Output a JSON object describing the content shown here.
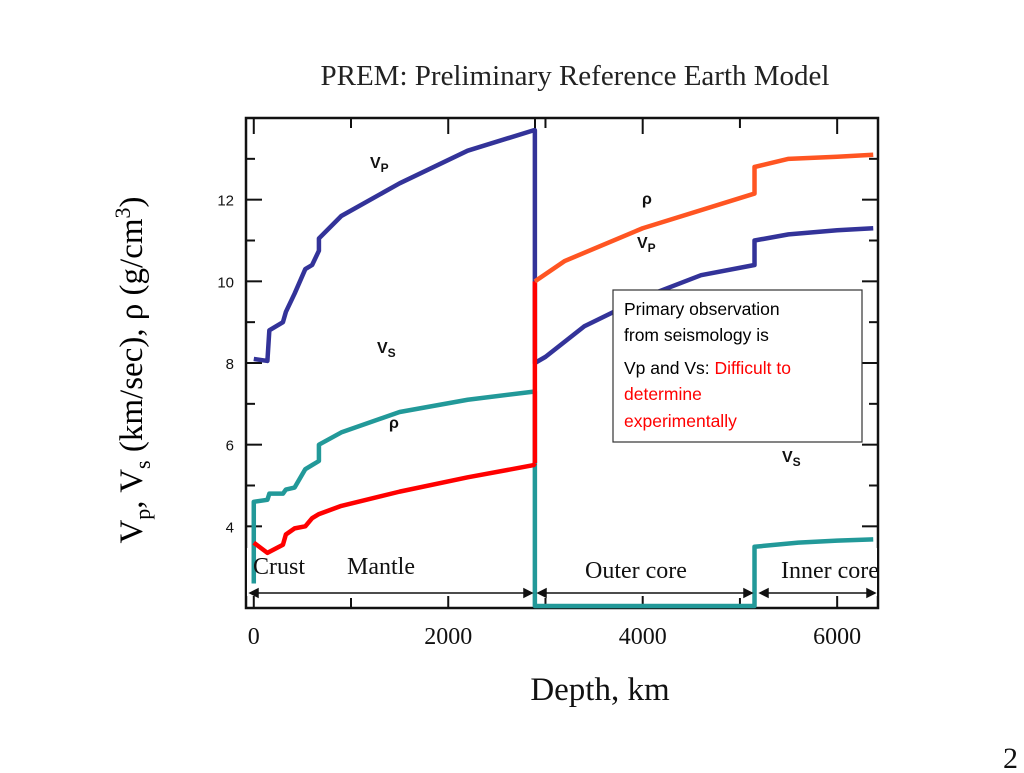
{
  "slide": {
    "title": "PREM: Preliminary Reference Earth Model",
    "ylabel": {
      "vp": "V",
      "vp_sub": "p",
      "sep": ", ",
      "vs": "V",
      "vs_sub": "s",
      "units": " (km/sec), ρ (g/cm",
      "units_sup": "3",
      "close": ")"
    },
    "xlabel": "Depth, km",
    "page_number": "2"
  },
  "annotation": {
    "line1": "Primary observation",
    "line2": "from seismology is",
    "line3a": "Vp and Vs: ",
    "line3b": "Difficult to",
    "line4": "determine",
    "line5": "experimentally",
    "highlight_color": "#ff0000"
  },
  "regions": {
    "crust": "Crust",
    "mantle": "Mantle",
    "outer_core": "Outer core",
    "inner_core": "Inner core"
  },
  "curve_labels": {
    "vp_mantle": {
      "main": "V",
      "sub": "P"
    },
    "vs_mantle": {
      "main": "V",
      "sub": "S"
    },
    "rho_mantle": "ρ",
    "rho_core": "ρ",
    "vp_core": {
      "main": "V",
      "sub": "P"
    },
    "vs_core": {
      "main": "V",
      "sub": "S"
    }
  },
  "chart_data": {
    "type": "line",
    "title": "PREM: Preliminary Reference Earth Model",
    "xlabel": "Depth, km",
    "ylabel": "Vp, Vs (km/sec), ρ (g/cm3)",
    "xlim": [
      -80,
      6420
    ],
    "ylim": [
      2,
      14
    ],
    "x_ticks": [
      0,
      2000,
      4000,
      6000
    ],
    "y_ticks": [
      4,
      6,
      8,
      10,
      12
    ],
    "grid": false,
    "colors": {
      "Vp": "#333399",
      "Vs": "#229999",
      "rho": "#ff0000",
      "rho_core": "#ff5522"
    },
    "series": [
      {
        "name": "Vp",
        "points": [
          [
            0,
            8.1
          ],
          [
            140,
            8.05
          ],
          [
            160,
            8.8
          ],
          [
            300,
            9.0
          ],
          [
            330,
            9.25
          ],
          [
            420,
            9.7
          ],
          [
            530,
            10.3
          ],
          [
            600,
            10.4
          ],
          [
            670,
            10.75
          ],
          [
            670,
            11.05
          ],
          [
            900,
            11.6
          ],
          [
            1500,
            12.4
          ],
          [
            2200,
            13.2
          ],
          [
            2880,
            13.7
          ],
          [
            2891,
            13.7
          ],
          [
            2891,
            8.0
          ],
          [
            3000,
            8.15
          ],
          [
            3400,
            8.9
          ],
          [
            4000,
            9.6
          ],
          [
            4600,
            10.15
          ],
          [
            5150,
            10.4
          ],
          [
            5150,
            11.0
          ],
          [
            5500,
            11.15
          ],
          [
            6000,
            11.25
          ],
          [
            6371,
            11.3
          ]
        ]
      },
      {
        "name": "Vs",
        "points": [
          [
            0,
            2.6
          ],
          [
            0,
            4.6
          ],
          [
            140,
            4.65
          ],
          [
            160,
            4.8
          ],
          [
            300,
            4.8
          ],
          [
            330,
            4.9
          ],
          [
            420,
            4.95
          ],
          [
            530,
            5.4
          ],
          [
            600,
            5.5
          ],
          [
            670,
            5.6
          ],
          [
            670,
            6.0
          ],
          [
            900,
            6.3
          ],
          [
            1500,
            6.8
          ],
          [
            2200,
            7.1
          ],
          [
            2880,
            7.3
          ],
          [
            2891,
            7.3
          ],
          [
            2891,
            0
          ],
          [
            5150,
            0
          ],
          [
            5150,
            3.5
          ],
          [
            5600,
            3.6
          ],
          [
            6000,
            3.65
          ],
          [
            6371,
            3.68
          ]
        ]
      },
      {
        "name": "ρ",
        "points": [
          [
            0,
            3.6
          ],
          [
            140,
            3.35
          ],
          [
            300,
            3.55
          ],
          [
            330,
            3.8
          ],
          [
            420,
            3.95
          ],
          [
            530,
            4.0
          ],
          [
            600,
            4.2
          ],
          [
            670,
            4.3
          ],
          [
            900,
            4.5
          ],
          [
            1500,
            4.85
          ],
          [
            2200,
            5.2
          ],
          [
            2880,
            5.5
          ],
          [
            2891,
            5.55
          ],
          [
            2891,
            10.0
          ],
          [
            3200,
            10.5
          ],
          [
            4000,
            11.3
          ],
          [
            5150,
            12.15
          ],
          [
            5150,
            12.8
          ],
          [
            5500,
            13.0
          ],
          [
            6000,
            13.05
          ],
          [
            6371,
            13.1
          ]
        ]
      }
    ]
  }
}
